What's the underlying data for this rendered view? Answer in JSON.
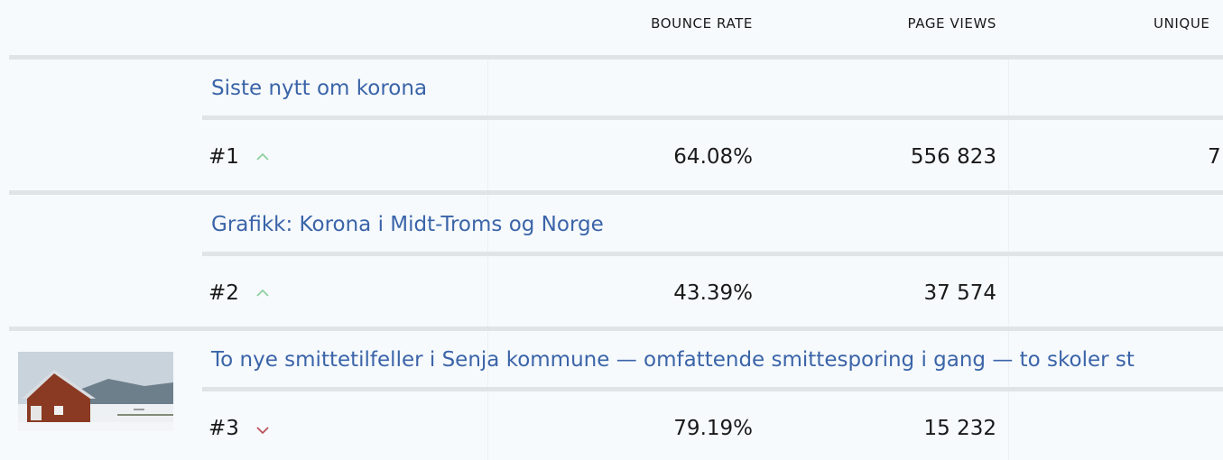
{
  "header": {
    "columns": [
      "BOUNCE RATE",
      "PAGE VIEWS",
      "UNIQUE"
    ]
  },
  "rows": [
    {
      "title": "Siste nytt om korona",
      "rank": "#1",
      "trend": "up",
      "bounce_rate": "64.08%",
      "page_views": "556 823",
      "unique": "7"
    },
    {
      "title": "Grafikk: Korona i Midt-Troms og Norge",
      "rank": "#2",
      "trend": "up",
      "bounce_rate": "43.39%",
      "page_views": "37 574"
    },
    {
      "title": "To nye smittetilfeller i Senja kommune — omfattende smittesporing i gang — to skoler st",
      "rank": "#3",
      "trend": "down",
      "bounce_rate": "79.19%",
      "page_views": "15 232",
      "thumbnail": true
    }
  ]
}
